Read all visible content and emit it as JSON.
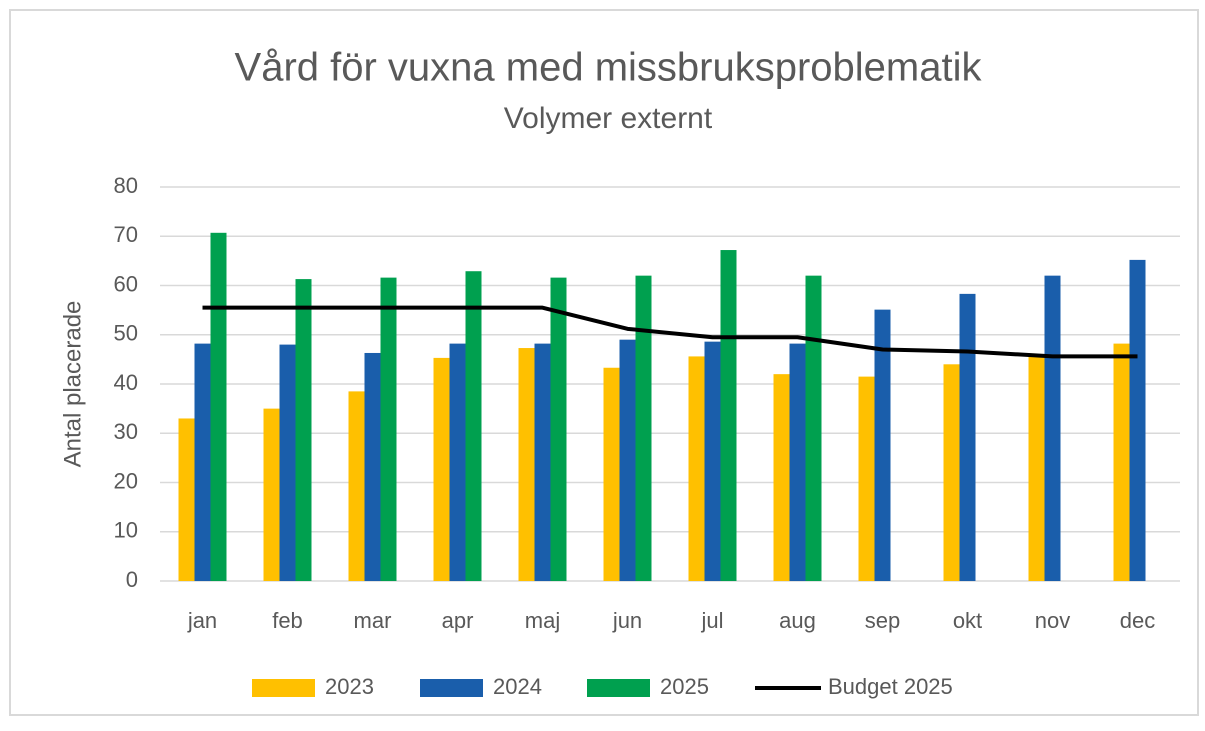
{
  "chart_data": {
    "type": "bar",
    "title": "Vård för vuxna med missbruksproblematik",
    "subtitle": "Volymer externt",
    "y_label": "Antal placerade",
    "categories": [
      "jan",
      "feb",
      "mar",
      "apr",
      "maj",
      "jun",
      "jul",
      "aug",
      "sep",
      "okt",
      "nov",
      "dec"
    ],
    "series": [
      {
        "name": "2023",
        "type": "bar",
        "color": "#ffc000",
        "values": [
          33,
          35,
          38.5,
          45.3,
          47.3,
          43.3,
          45.6,
          42,
          41.5,
          44,
          45.5,
          48.2
        ]
      },
      {
        "name": "2024",
        "type": "bar",
        "color": "#1a5eab",
        "values": [
          48.2,
          48,
          46.3,
          48.2,
          48.2,
          49,
          48.6,
          48.2,
          55.1,
          58.3,
          62,
          65.2
        ]
      },
      {
        "name": "2025",
        "type": "bar",
        "color": "#00a04f",
        "values": [
          70.7,
          61.3,
          61.6,
          62.9,
          61.6,
          62,
          67.2,
          62,
          null,
          null,
          null,
          null
        ]
      },
      {
        "name": "Budget 2025",
        "type": "line",
        "color": "#000000",
        "values": [
          55.5,
          55.5,
          55.5,
          55.5,
          55.5,
          51.2,
          49.5,
          49.5,
          47,
          46.6,
          45.6,
          45.6
        ]
      }
    ],
    "ylim": [
      0,
      80
    ],
    "yticks": [
      0,
      10,
      20,
      30,
      40,
      50,
      60,
      70,
      80
    ],
    "grid": true,
    "legend": "bottom"
  }
}
